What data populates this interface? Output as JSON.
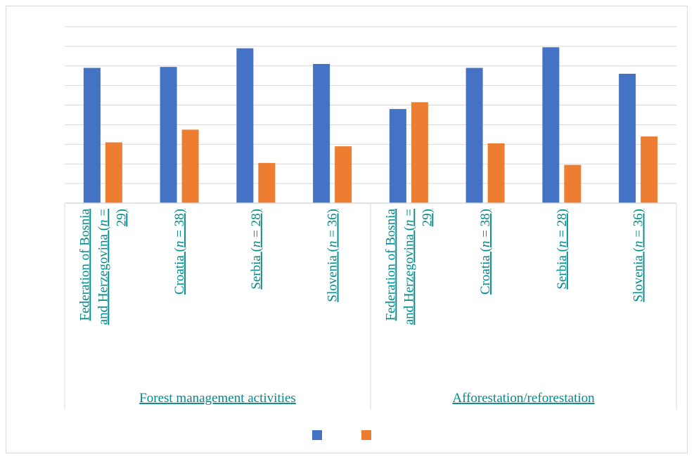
{
  "chart_data": {
    "type": "bar",
    "groups": [
      {
        "label": "Forest management activities",
        "categories": [
          [
            "Federation of Bosnia",
            "and Herzegovina (n =",
            "29)"
          ],
          [
            "Croatia (n = 38)"
          ],
          [
            "Serbia (n = 28)"
          ],
          [
            "Slovenia (n = 36)"
          ]
        ]
      },
      {
        "label": "Afforestation/reforestation",
        "categories": [
          [
            "Federation of Bosnia",
            "and Herzegovina (n =",
            "29)"
          ],
          [
            "Croatia (n = 38)"
          ],
          [
            "Serbia (n = 28)"
          ],
          [
            "Slovenia (n = 36)"
          ]
        ]
      }
    ],
    "series": [
      {
        "color": "#4472c4",
        "values": [
          69,
          69.5,
          79,
          71,
          48,
          69,
          79.5,
          66
        ]
      },
      {
        "color": "#ed7d31",
        "values": [
          31,
          37.5,
          20.5,
          29,
          51.5,
          30.5,
          19.5,
          34
        ]
      }
    ],
    "ylim": [
      0,
      90
    ],
    "ytick_step": 10,
    "grid": true,
    "legend_position": "bottom"
  }
}
